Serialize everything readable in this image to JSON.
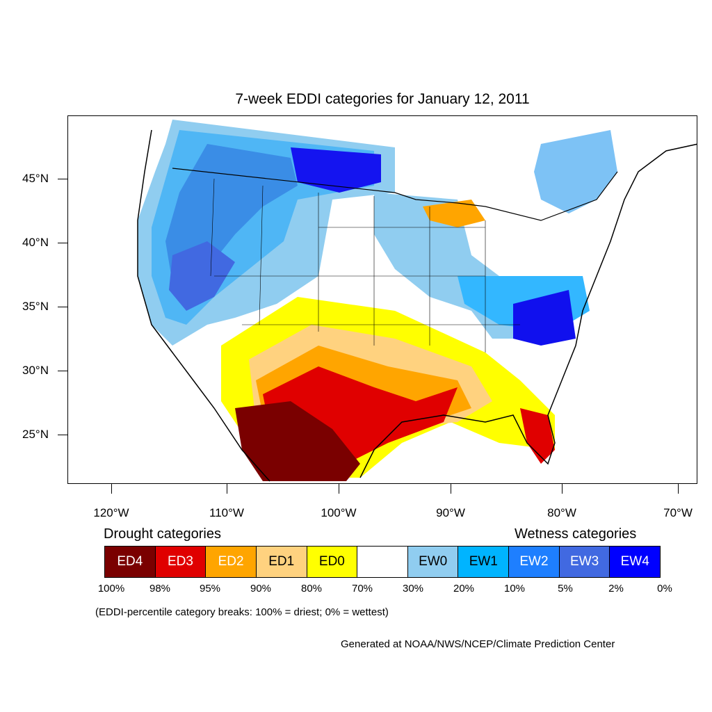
{
  "title": "7-week EDDI categories for January 12, 2011",
  "lat_labels": [
    "45°N",
    "40°N",
    "35°N",
    "30°N",
    "25°N"
  ],
  "lon_labels": [
    "120°W",
    "110°W",
    "100°W",
    "90°W",
    "80°W",
    "70°W"
  ],
  "legend": {
    "drought_title": "Drought categories",
    "wetness_title": "Wetness categories",
    "categories": [
      {
        "label": "ED4",
        "color": "#7a0000",
        "text_color": "#ffffff"
      },
      {
        "label": "ED3",
        "color": "#e00000",
        "text_color": "#ffffff"
      },
      {
        "label": "ED2",
        "color": "#ffa500",
        "text_color": "#ffffff"
      },
      {
        "label": "ED1",
        "color": "#ffd27f",
        "text_color": "#000000"
      },
      {
        "label": "ED0",
        "color": "#ffff00",
        "text_color": "#000000"
      },
      {
        "label": "",
        "color": "#ffffff",
        "text_color": "#000000"
      },
      {
        "label": "EW0",
        "color": "#90cdf0",
        "text_color": "#000000"
      },
      {
        "label": "EW1",
        "color": "#00b4ff",
        "text_color": "#000000"
      },
      {
        "label": "EW2",
        "color": "#1e7fff",
        "text_color": "#ffffff"
      },
      {
        "label": "EW3",
        "color": "#4169e1",
        "text_color": "#ffffff"
      },
      {
        "label": "EW4",
        "color": "#0000ff",
        "text_color": "#ffffff"
      }
    ],
    "breaks": [
      "100%",
      "98%",
      "95%",
      "90%",
      "80%",
      "70%",
      "30%",
      "20%",
      "10%",
      "5%",
      "2%",
      "0%"
    ]
  },
  "note": "(EDDI-percentile category breaks: 100% = driest; 0% = wettest)",
  "credit": "Generated at NOAA/NWS/NCEP/Climate Prediction Center"
}
